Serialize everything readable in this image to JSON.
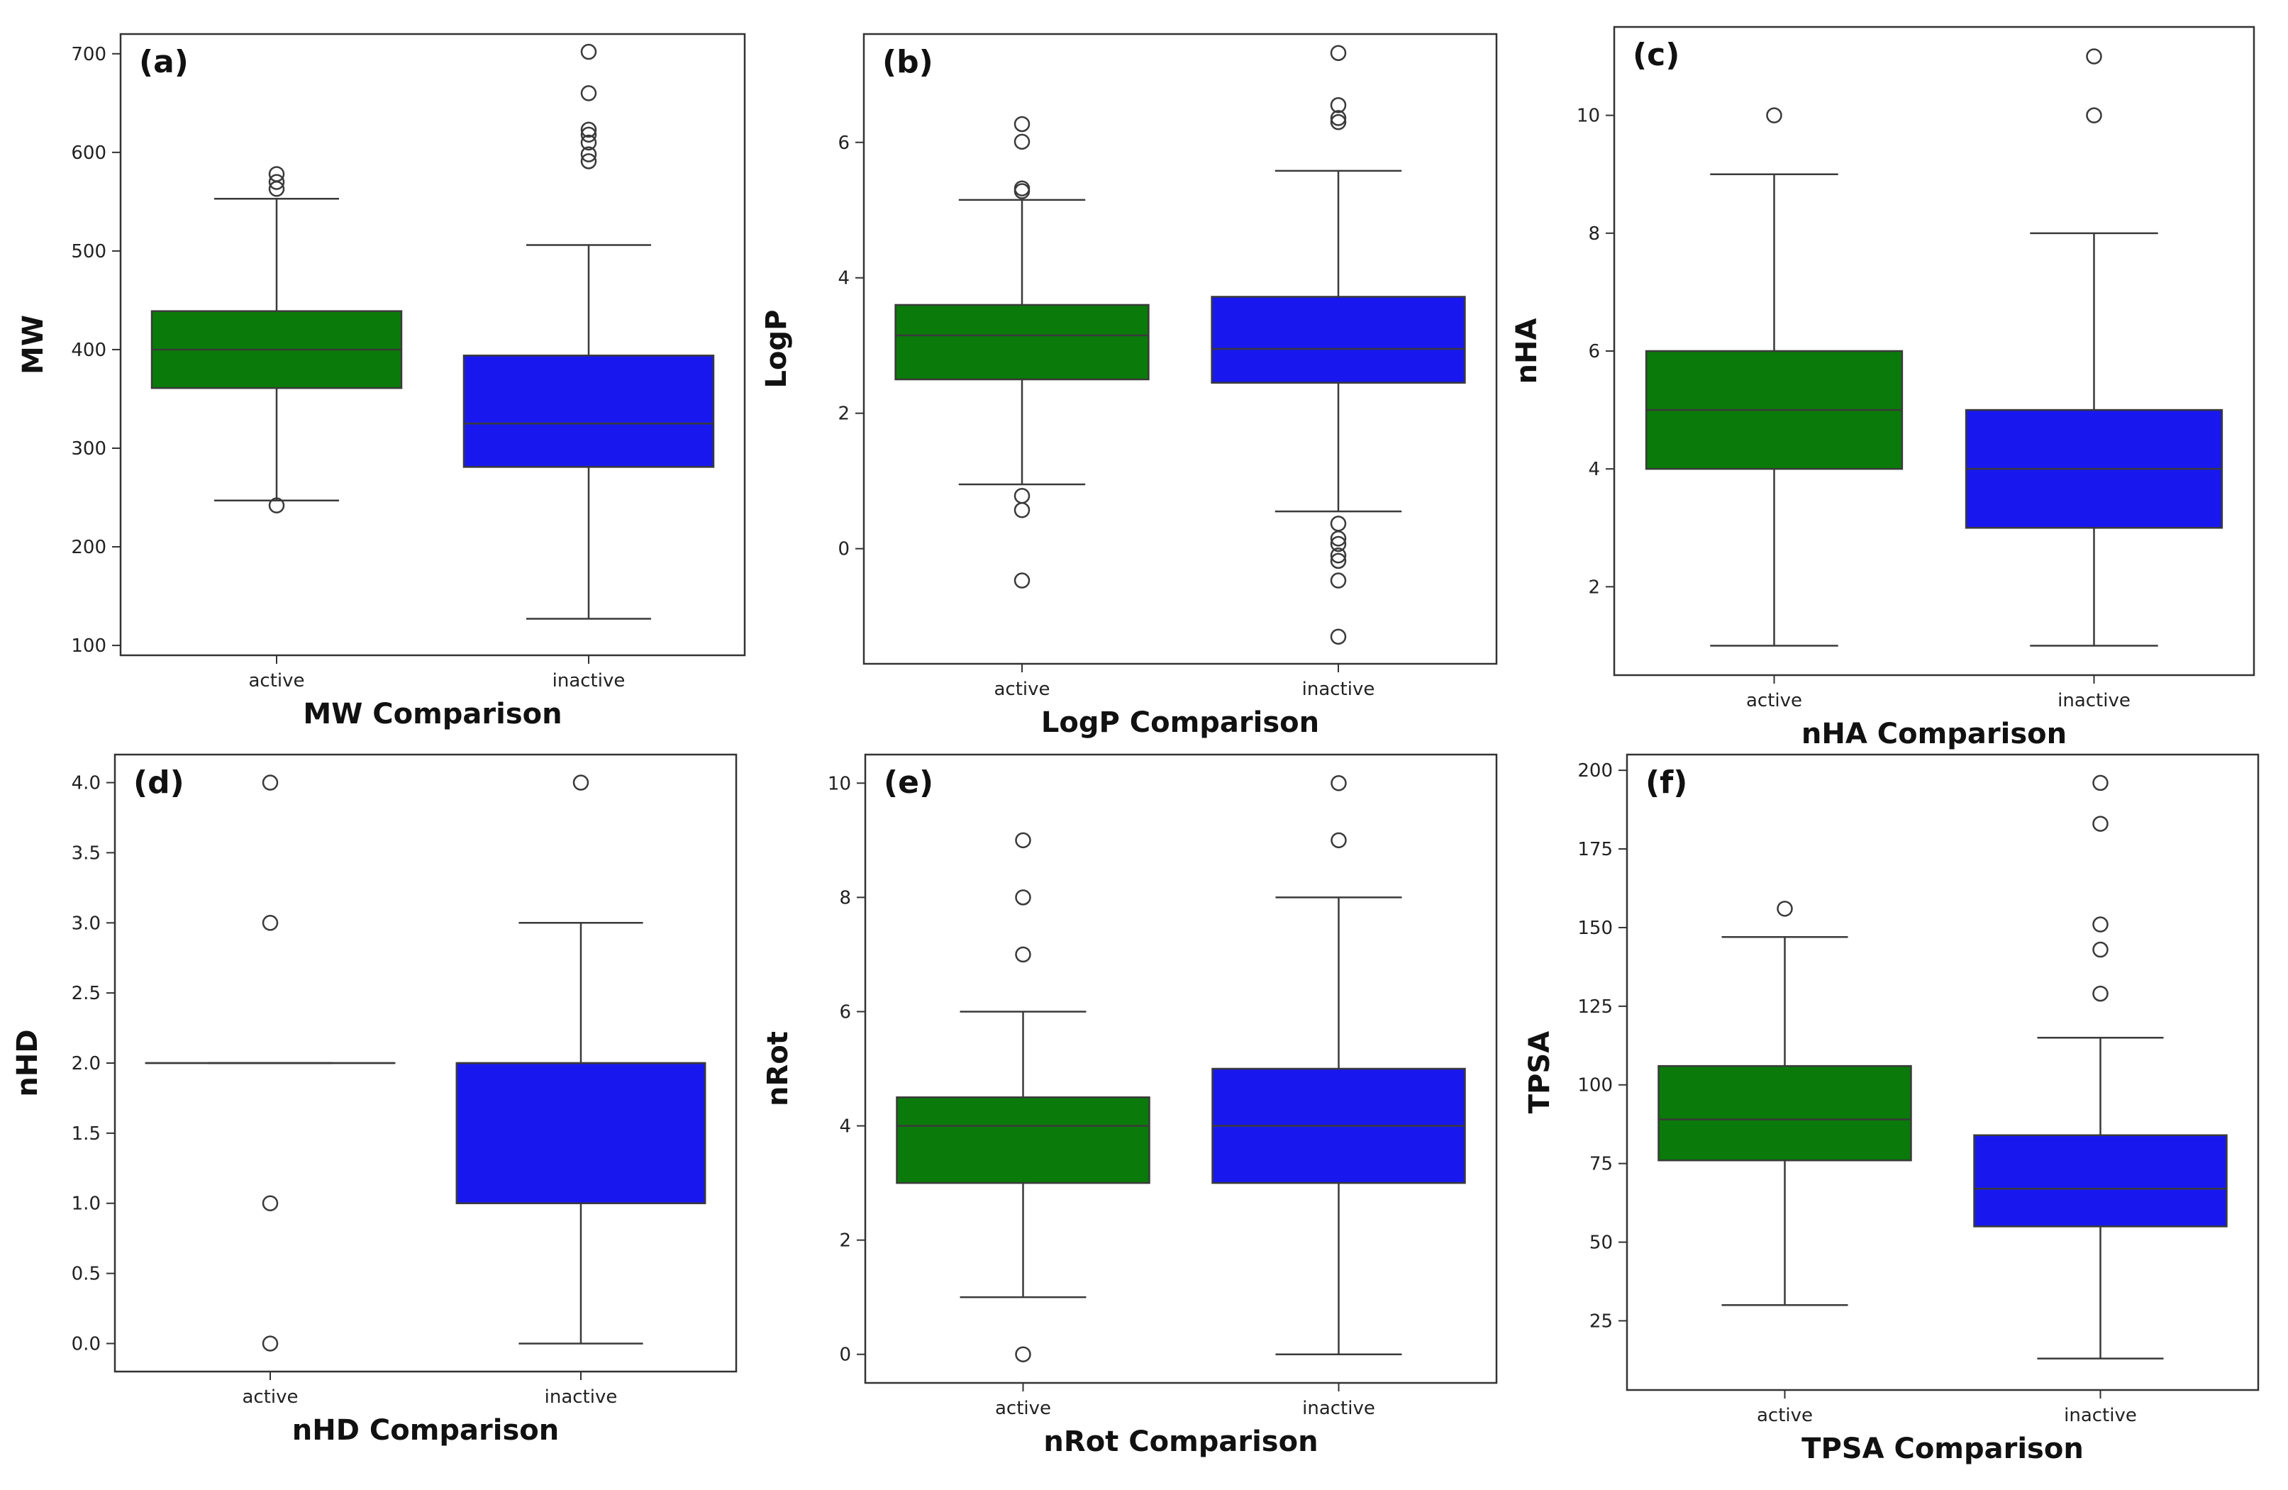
{
  "figure": {
    "colors": {
      "active": "#0a7a0a",
      "inactive": "#1818ee",
      "line": "#3a3a3a",
      "frame": "#333333"
    }
  },
  "chart_data": [
    {
      "type": "box",
      "panel": "(a)",
      "xlabel": "MW Comparison",
      "ylabel": "MW",
      "ylim": [
        90,
        720
      ],
      "yticks": [
        100,
        200,
        300,
        400,
        500,
        600,
        700
      ],
      "categories": [
        "active",
        "inactive"
      ],
      "boxes": [
        {
          "category": "active",
          "whislo": 247,
          "q1": 361,
          "med": 400,
          "q3": 439,
          "whishi": 553,
          "fliers": [
            242,
            563,
            570,
            578
          ]
        },
        {
          "category": "inactive",
          "whislo": 127,
          "q1": 281,
          "med": 325,
          "q3": 394,
          "whishi": 506,
          "fliers": [
            591,
            598,
            610,
            618,
            623,
            660,
            702
          ]
        }
      ]
    },
    {
      "type": "box",
      "panel": "(b)",
      "xlabel": "LogP Comparison",
      "ylabel": "LogP",
      "ylim": [
        -1.7,
        7.6
      ],
      "yticks": [
        0,
        2,
        4,
        6
      ],
      "categories": [
        "active",
        "inactive"
      ],
      "boxes": [
        {
          "category": "active",
          "whislo": 0.95,
          "q1": 2.5,
          "med": 3.15,
          "q3": 3.6,
          "whishi": 5.15,
          "fliers": [
            -0.47,
            0.57,
            0.78,
            5.28,
            5.32,
            6.01,
            6.27
          ]
        },
        {
          "category": "inactive",
          "whislo": 0.55,
          "q1": 2.45,
          "med": 2.95,
          "q3": 3.72,
          "whishi": 5.58,
          "fliers": [
            -1.3,
            -0.47,
            -0.18,
            -0.1,
            0.07,
            0.15,
            0.37,
            6.3,
            6.36,
            6.55,
            7.32
          ]
        }
      ]
    },
    {
      "type": "box",
      "panel": "(c)",
      "xlabel": "nHA Comparison",
      "ylabel": "nHA",
      "ylim": [
        0.5,
        11.5
      ],
      "yticks": [
        2,
        4,
        6,
        8,
        10
      ],
      "categories": [
        "active",
        "inactive"
      ],
      "boxes": [
        {
          "category": "active",
          "whislo": 1,
          "q1": 4,
          "med": 5,
          "q3": 6,
          "whishi": 9,
          "fliers": [
            10
          ]
        },
        {
          "category": "inactive",
          "whislo": 1,
          "q1": 3,
          "med": 4,
          "q3": 5,
          "whishi": 8,
          "fliers": [
            10,
            11
          ]
        }
      ]
    },
    {
      "type": "box",
      "panel": "(d)",
      "xlabel": "nHD Comparison",
      "ylabel": "nHD",
      "ylim": [
        -0.2,
        4.2
      ],
      "yticks": [
        0.0,
        0.5,
        1.0,
        1.5,
        2.0,
        2.5,
        3.0,
        3.5,
        4.0
      ],
      "categories": [
        "active",
        "inactive"
      ],
      "boxes": [
        {
          "category": "active",
          "whislo": 2,
          "q1": 2,
          "med": 2,
          "q3": 2,
          "whishi": 2,
          "fliers": [
            0,
            1,
            3,
            4
          ]
        },
        {
          "category": "inactive",
          "whislo": 0,
          "q1": 1,
          "med": 2,
          "q3": 2,
          "whishi": 3,
          "fliers": [
            4
          ]
        }
      ]
    },
    {
      "type": "box",
      "panel": "(e)",
      "xlabel": "nRot Comparison",
      "ylabel": "nRot",
      "ylim": [
        -0.5,
        10.5
      ],
      "yticks": [
        0,
        2,
        4,
        6,
        8,
        10
      ],
      "categories": [
        "active",
        "inactive"
      ],
      "boxes": [
        {
          "category": "active",
          "whislo": 1,
          "q1": 3,
          "med": 4,
          "q3": 4.5,
          "whishi": 6,
          "fliers": [
            0,
            7,
            8,
            9
          ]
        },
        {
          "category": "inactive",
          "whislo": 0,
          "q1": 3,
          "med": 4,
          "q3": 5,
          "whishi": 8,
          "fliers": [
            9,
            10
          ]
        }
      ]
    },
    {
      "type": "box",
      "panel": "(f)",
      "xlabel": "TPSA Comparison",
      "ylabel": "TPSA",
      "ylim": [
        3,
        205
      ],
      "yticks": [
        25,
        50,
        75,
        100,
        125,
        150,
        175,
        200
      ],
      "categories": [
        "active",
        "inactive"
      ],
      "boxes": [
        {
          "category": "active",
          "whislo": 30,
          "q1": 76,
          "med": 89,
          "q3": 106,
          "whishi": 147,
          "fliers": [
            156
          ]
        },
        {
          "category": "inactive",
          "whislo": 13,
          "q1": 55,
          "med": 67,
          "q3": 84,
          "whishi": 115,
          "fliers": [
            129,
            143,
            151,
            183,
            196
          ]
        }
      ]
    }
  ]
}
